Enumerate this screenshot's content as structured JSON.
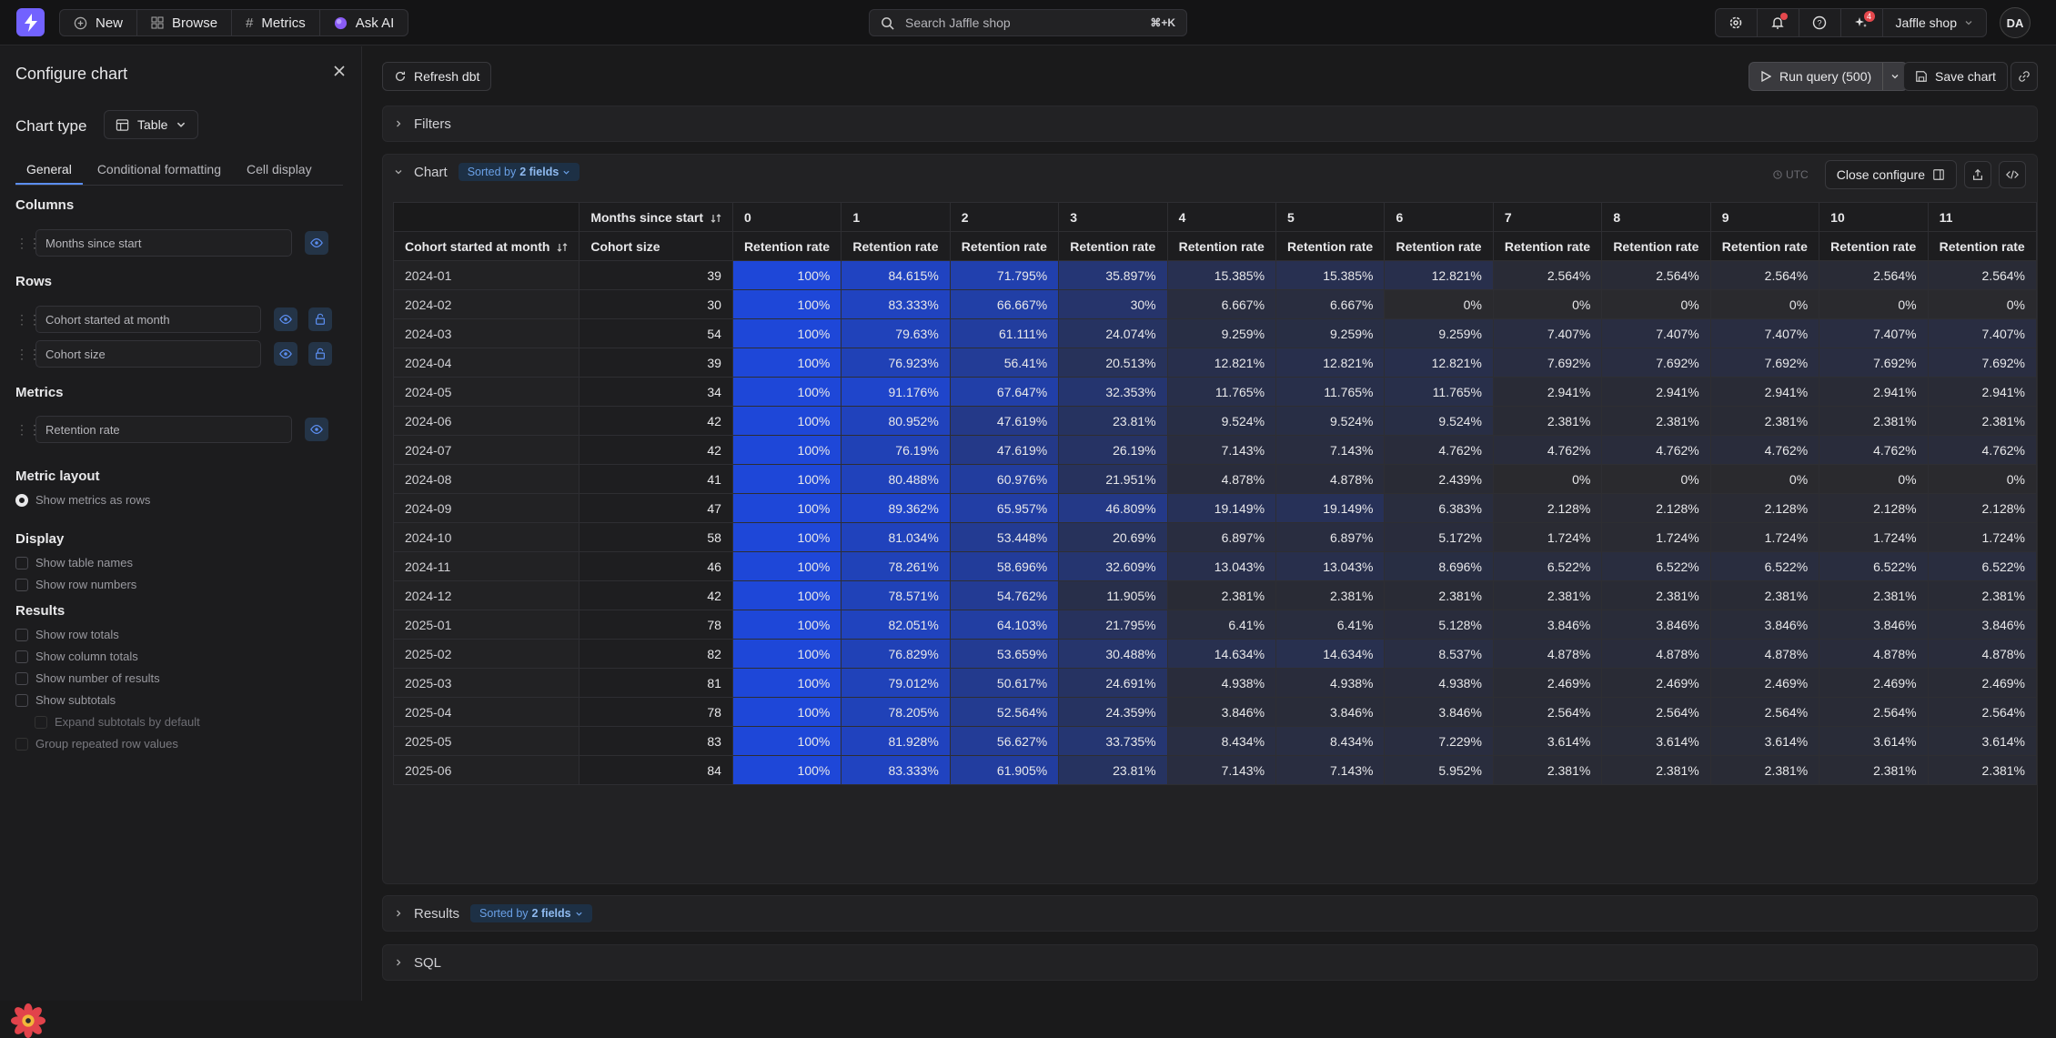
{
  "topnav": {
    "new": "New",
    "browse": "Browse",
    "metrics": "Metrics",
    "ask_ai": "Ask AI",
    "search_placeholder": "Search Jaffle shop",
    "search_shortcut": "⌘+K",
    "notif_badge": "4",
    "org": "Jaffle shop",
    "avatar": "DA"
  },
  "sidebar": {
    "title": "Configure chart",
    "chart_type_label": "Chart type",
    "chart_type_value": "Table",
    "tabs": [
      "General",
      "Conditional formatting",
      "Cell display"
    ],
    "columns_label": "Columns",
    "columns": [
      "Months since start"
    ],
    "rows_label": "Rows",
    "rows": [
      "Cohort started at month",
      "Cohort size"
    ],
    "metrics_label": "Metrics",
    "metrics": [
      "Retention rate"
    ],
    "metric_layout_label": "Metric layout",
    "metric_layout_option": "Show metrics as rows",
    "display_label": "Display",
    "display_options": [
      "Show table names",
      "Show row numbers"
    ],
    "results_label": "Results",
    "results_options": [
      "Show row totals",
      "Show column totals",
      "Show number of results",
      "Show subtotals",
      "Expand subtotals by default",
      "Group repeated row values"
    ]
  },
  "toolbar": {
    "refresh": "Refresh dbt",
    "run_query": "Run query (500)",
    "save_chart": "Save chart"
  },
  "filters": {
    "label": "Filters"
  },
  "chart": {
    "label": "Chart",
    "sorted_prefix": "Sorted by",
    "sorted_fields": "2 fields",
    "utc": "UTC",
    "close_configure": "Close configure"
  },
  "results": {
    "label": "Results",
    "sorted_prefix": "Sorted by",
    "sorted_fields": "2 fields"
  },
  "sql": {
    "label": "SQL"
  },
  "colors": {
    "accent": "#5b8def",
    "high": "#1e47d8",
    "low": "#2a2a2e"
  },
  "chart_data": {
    "type": "table",
    "column_header": "Months since start",
    "row_headers": [
      "Cohort started at month",
      "Cohort size"
    ],
    "metric": "Retention rate",
    "months": [
      "0",
      "1",
      "2",
      "3",
      "4",
      "5",
      "6",
      "7",
      "8",
      "9",
      "10",
      "11"
    ],
    "rows": [
      {
        "cohort": "2024-01",
        "size": "39",
        "values": [
          "100%",
          "84.615%",
          "71.795%",
          "35.897%",
          "15.385%",
          "15.385%",
          "12.821%",
          "2.564%",
          "2.564%",
          "2.564%",
          "2.564%",
          "2.564%"
        ]
      },
      {
        "cohort": "2024-02",
        "size": "30",
        "values": [
          "100%",
          "83.333%",
          "66.667%",
          "30%",
          "6.667%",
          "6.667%",
          "0%",
          "0%",
          "0%",
          "0%",
          "0%",
          "0%"
        ]
      },
      {
        "cohort": "2024-03",
        "size": "54",
        "values": [
          "100%",
          "79.63%",
          "61.111%",
          "24.074%",
          "9.259%",
          "9.259%",
          "9.259%",
          "7.407%",
          "7.407%",
          "7.407%",
          "7.407%",
          "7.407%"
        ]
      },
      {
        "cohort": "2024-04",
        "size": "39",
        "values": [
          "100%",
          "76.923%",
          "56.41%",
          "20.513%",
          "12.821%",
          "12.821%",
          "12.821%",
          "7.692%",
          "7.692%",
          "7.692%",
          "7.692%",
          "7.692%"
        ]
      },
      {
        "cohort": "2024-05",
        "size": "34",
        "values": [
          "100%",
          "91.176%",
          "67.647%",
          "32.353%",
          "11.765%",
          "11.765%",
          "11.765%",
          "2.941%",
          "2.941%",
          "2.941%",
          "2.941%",
          "2.941%"
        ]
      },
      {
        "cohort": "2024-06",
        "size": "42",
        "values": [
          "100%",
          "80.952%",
          "47.619%",
          "23.81%",
          "9.524%",
          "9.524%",
          "9.524%",
          "2.381%",
          "2.381%",
          "2.381%",
          "2.381%",
          "2.381%"
        ]
      },
      {
        "cohort": "2024-07",
        "size": "42",
        "values": [
          "100%",
          "76.19%",
          "47.619%",
          "26.19%",
          "7.143%",
          "7.143%",
          "4.762%",
          "4.762%",
          "4.762%",
          "4.762%",
          "4.762%",
          "4.762%"
        ]
      },
      {
        "cohort": "2024-08",
        "size": "41",
        "values": [
          "100%",
          "80.488%",
          "60.976%",
          "21.951%",
          "4.878%",
          "4.878%",
          "2.439%",
          "0%",
          "0%",
          "0%",
          "0%",
          "0%"
        ]
      },
      {
        "cohort": "2024-09",
        "size": "47",
        "values": [
          "100%",
          "89.362%",
          "65.957%",
          "46.809%",
          "19.149%",
          "19.149%",
          "6.383%",
          "2.128%",
          "2.128%",
          "2.128%",
          "2.128%",
          "2.128%"
        ]
      },
      {
        "cohort": "2024-10",
        "size": "58",
        "values": [
          "100%",
          "81.034%",
          "53.448%",
          "20.69%",
          "6.897%",
          "6.897%",
          "5.172%",
          "1.724%",
          "1.724%",
          "1.724%",
          "1.724%",
          "1.724%"
        ]
      },
      {
        "cohort": "2024-11",
        "size": "46",
        "values": [
          "100%",
          "78.261%",
          "58.696%",
          "32.609%",
          "13.043%",
          "13.043%",
          "8.696%",
          "6.522%",
          "6.522%",
          "6.522%",
          "6.522%",
          "6.522%"
        ]
      },
      {
        "cohort": "2024-12",
        "size": "42",
        "values": [
          "100%",
          "78.571%",
          "54.762%",
          "11.905%",
          "2.381%",
          "2.381%",
          "2.381%",
          "2.381%",
          "2.381%",
          "2.381%",
          "2.381%",
          "2.381%"
        ]
      },
      {
        "cohort": "2025-01",
        "size": "78",
        "values": [
          "100%",
          "82.051%",
          "64.103%",
          "21.795%",
          "6.41%",
          "6.41%",
          "5.128%",
          "3.846%",
          "3.846%",
          "3.846%",
          "3.846%",
          "3.846%"
        ]
      },
      {
        "cohort": "2025-02",
        "size": "82",
        "values": [
          "100%",
          "76.829%",
          "53.659%",
          "30.488%",
          "14.634%",
          "14.634%",
          "8.537%",
          "4.878%",
          "4.878%",
          "4.878%",
          "4.878%",
          "4.878%"
        ]
      },
      {
        "cohort": "2025-03",
        "size": "81",
        "values": [
          "100%",
          "79.012%",
          "50.617%",
          "24.691%",
          "4.938%",
          "4.938%",
          "4.938%",
          "2.469%",
          "2.469%",
          "2.469%",
          "2.469%",
          "2.469%"
        ]
      },
      {
        "cohort": "2025-04",
        "size": "78",
        "values": [
          "100%",
          "78.205%",
          "52.564%",
          "24.359%",
          "3.846%",
          "3.846%",
          "3.846%",
          "2.564%",
          "2.564%",
          "2.564%",
          "2.564%",
          "2.564%"
        ]
      },
      {
        "cohort": "2025-05",
        "size": "83",
        "values": [
          "100%",
          "81.928%",
          "56.627%",
          "33.735%",
          "8.434%",
          "8.434%",
          "7.229%",
          "3.614%",
          "3.614%",
          "3.614%",
          "3.614%",
          "3.614%"
        ]
      },
      {
        "cohort": "2025-06",
        "size": "84",
        "values": [
          "100%",
          "83.333%",
          "61.905%",
          "23.81%",
          "7.143%",
          "7.143%",
          "5.952%",
          "2.381%",
          "2.381%",
          "2.381%",
          "2.381%",
          "2.381%"
        ]
      }
    ]
  }
}
